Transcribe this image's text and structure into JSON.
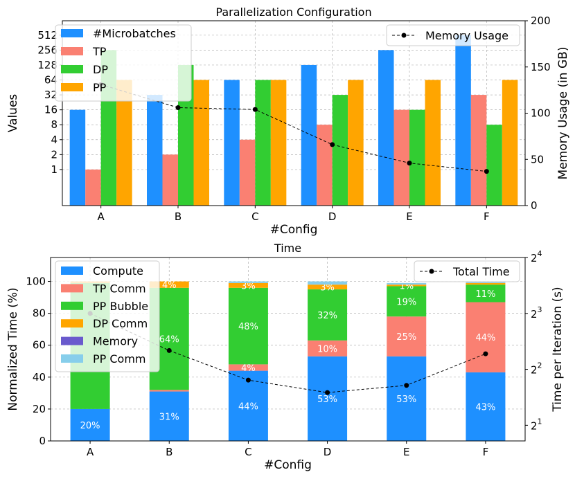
{
  "chart_data": [
    {
      "type": "bar",
      "title": "Parallelization Configuration",
      "xlabel": "#Config",
      "ylabel": "Values",
      "y2label": "Memory Usage (in GB)",
      "yscale": "log2",
      "yticks": [
        "1",
        "2",
        "4",
        "8",
        "16",
        "32",
        "64",
        "128",
        "256",
        "512"
      ],
      "y2lim": [
        0,
        200
      ],
      "y2ticks": [
        "0",
        "50",
        "100",
        "150",
        "200"
      ],
      "grid": true,
      "legend_placement": "upper-left",
      "line_legend_placement": "upper-right",
      "categories": [
        "A",
        "B",
        "C",
        "D",
        "E",
        "F"
      ],
      "series": [
        {
          "name": "#Microbatches",
          "color": "#1e90ff",
          "values": [
            16,
            32,
            64,
            128,
            256,
            512
          ]
        },
        {
          "name": "TP",
          "color": "#fa8072",
          "values": [
            1,
            2,
            4,
            8,
            16,
            32
          ]
        },
        {
          "name": "DP",
          "color": "#32cd32",
          "values": [
            256,
            128,
            64,
            32,
            16,
            8
          ]
        },
        {
          "name": "PP",
          "color": "#ffa500",
          "values": [
            64,
            64,
            64,
            64,
            64,
            64
          ]
        }
      ],
      "line": {
        "name": "Memory Usage",
        "axis": "right",
        "values": [
          131,
          106,
          104,
          66,
          46,
          37
        ]
      }
    },
    {
      "type": "bar",
      "stacked": true,
      "title": "Time",
      "xlabel": "#Config",
      "ylabel": "Normalized Time (%)",
      "y2label": "Time per Iteration (s)",
      "ylim": [
        0,
        115
      ],
      "yticks": [
        "0",
        "20",
        "40",
        "60",
        "80",
        "100"
      ],
      "y2scale": "log2",
      "y2ticks": [
        {
          "base": "2",
          "exp": "1"
        },
        {
          "base": "2",
          "exp": "2"
        },
        {
          "base": "2",
          "exp": "3"
        },
        {
          "base": "2",
          "exp": "4"
        }
      ],
      "grid": true,
      "legend_placement": "upper-left",
      "line_legend_placement": "upper-right",
      "categories": [
        "A",
        "B",
        "C",
        "D",
        "E",
        "F"
      ],
      "series": [
        {
          "name": "Compute",
          "color": "#1e90ff",
          "values": [
            20,
            31,
            44,
            53,
            53,
            43
          ],
          "labels": [
            "20%",
            "31%",
            "44%",
            "53%",
            "53%",
            "43%"
          ]
        },
        {
          "name": "TP Comm",
          "color": "#fa8072",
          "values": [
            0,
            1,
            4,
            10,
            25,
            44
          ],
          "labels": [
            "",
            "",
            "4%",
            "10%",
            "25%",
            "44%"
          ]
        },
        {
          "name": "PP Bubble",
          "color": "#32cd32",
          "values": [
            79,
            64,
            48,
            32,
            19,
            11
          ],
          "labels": [
            "",
            "64%",
            "48%",
            "32%",
            "19%",
            "11%"
          ]
        },
        {
          "name": "DP Comm",
          "color": "#ffa500",
          "values": [
            1,
            4,
            3,
            3,
            1,
            1
          ],
          "labels": [
            "",
            "4%",
            "3%",
            "3%",
            "1%",
            ""
          ]
        },
        {
          "name": "Memory",
          "color": "#6a5acd",
          "values": [
            0,
            0,
            0,
            0,
            0,
            0
          ],
          "labels": [
            "",
            "",
            "",
            "",
            "",
            ""
          ]
        },
        {
          "name": "PP Comm",
          "color": "#87ceeb",
          "values": [
            0,
            0,
            1,
            2,
            1,
            1
          ],
          "labels": [
            "",
            "",
            "",
            "",
            "",
            ""
          ]
        }
      ],
      "line": {
        "name": "Total Time",
        "axis": "right",
        "values": [
          8.0,
          5.05,
          3.5,
          3.0,
          3.28,
          4.85
        ]
      }
    }
  ]
}
